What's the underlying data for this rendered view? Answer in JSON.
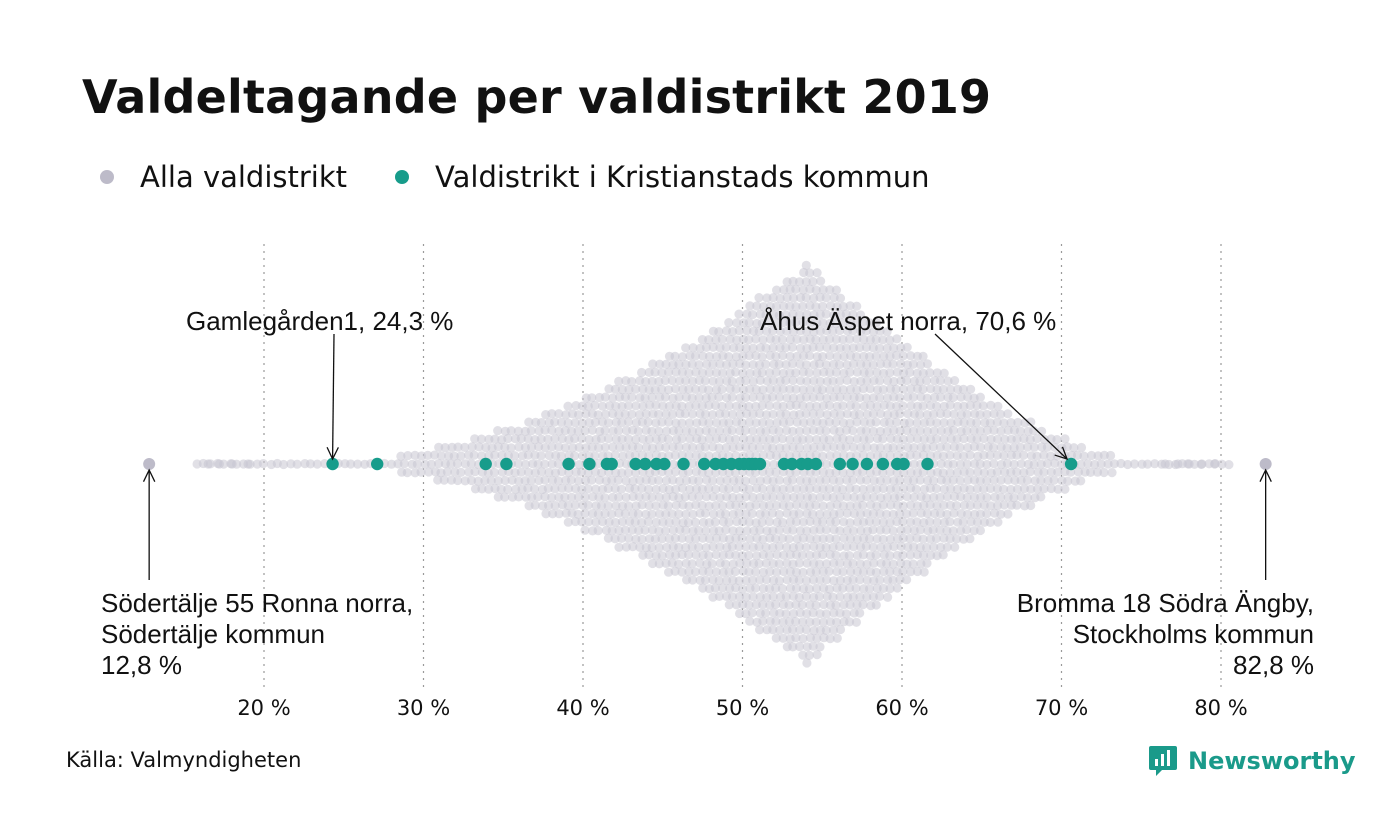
{
  "title": "Valdeltagande per valdistrikt 2019",
  "legend": {
    "all_label": "Alla valdistrikt",
    "local_label": "Valdistrikt i Kristianstads kommun"
  },
  "source": "Källa: Valmyndigheten",
  "brand": {
    "name": "Newsworthy",
    "icon": "newsworthy-logo-icon"
  },
  "colors": {
    "all": "#c8c6d2",
    "local": "#179c8b",
    "text": "#111111"
  },
  "chart_data": {
    "type": "scatter",
    "subtype": "beeswarm",
    "xlabel": "",
    "ylabel": "",
    "xlim": [
      12,
      84
    ],
    "x_ticks": [
      20,
      30,
      40,
      50,
      60,
      70,
      80
    ],
    "x_tick_labels": [
      "20 %",
      "30 %",
      "40 %",
      "50 %",
      "60 %",
      "70 %",
      "80 %"
    ],
    "grid": "vertical-dotted",
    "legend_position": "top-left",
    "series": [
      {
        "name": "Alla valdistrikt",
        "distribution_peak": 54,
        "min": 12.8,
        "max": 82.8
      },
      {
        "name": "Valdistrikt i Kristianstads kommun",
        "values": [
          24.3,
          27.1,
          33.9,
          35.2,
          39.1,
          40.4,
          41.5,
          41.8,
          43.3,
          43.9,
          44.6,
          45.1,
          46.3,
          47.6,
          48.3,
          48.8,
          49.3,
          49.8,
          50.1,
          50.4,
          50.6,
          50.8,
          51.1,
          52.6,
          53.1,
          53.7,
          54.1,
          54.6,
          56.1,
          56.9,
          57.8,
          58.8,
          59.7,
          60.1,
          61.6,
          70.6
        ]
      }
    ],
    "annotations": [
      {
        "text": "Gamlegården1, 24,3 %",
        "x": 24.3
      },
      {
        "text": "Åhus Äspet norra, 70,6 %",
        "x": 70.6
      },
      {
        "lines": [
          "Södertälje 55 Ronna norra,",
          "Södertälje kommun",
          "12,8 %"
        ],
        "x": 12.8
      },
      {
        "lines": [
          "Bromma 18 Södra Ängby,",
          "Stockholms kommun",
          "82,8 %"
        ],
        "x": 82.8
      }
    ]
  }
}
